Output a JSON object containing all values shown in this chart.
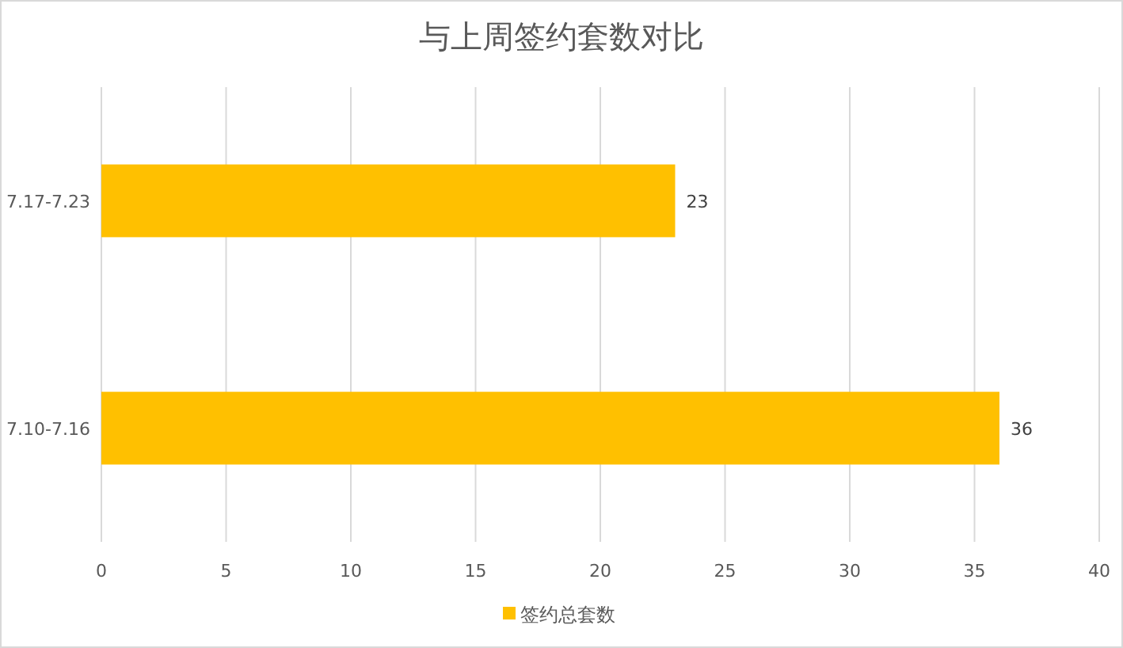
{
  "chart_data": {
    "type": "bar",
    "orientation": "horizontal",
    "title": "与上周签约套数对比",
    "categories": [
      "7.17-7.23",
      "7.10-7.16"
    ],
    "series": [
      {
        "name": "签约总套数",
        "color": "#ffc000",
        "values": [
          23,
          36
        ]
      }
    ],
    "xlim": [
      0,
      40
    ],
    "xticks": [
      0,
      5,
      10,
      15,
      20,
      25,
      30,
      35,
      40
    ],
    "grid": "x",
    "legend": "bottom",
    "data_labels": true
  }
}
